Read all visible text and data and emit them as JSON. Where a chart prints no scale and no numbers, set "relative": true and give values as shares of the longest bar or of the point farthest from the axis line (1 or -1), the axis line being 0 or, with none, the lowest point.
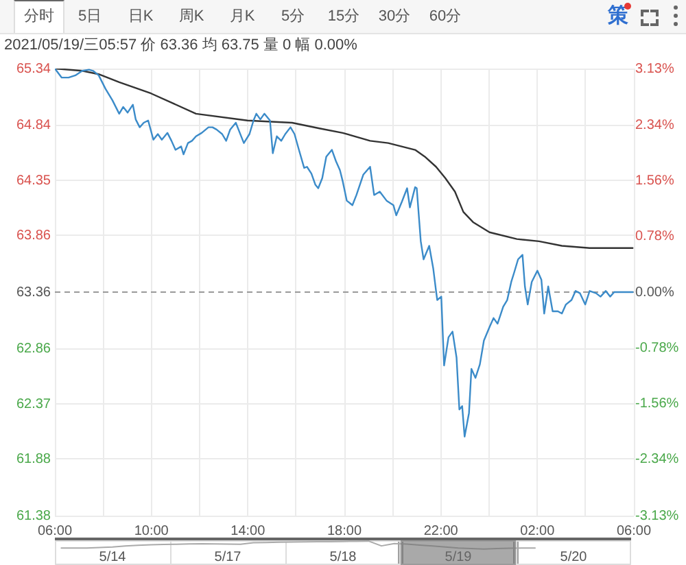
{
  "chart_data": [
    {
      "type": "line",
      "subtitle": "2021/05/19/三05:57 价 63.36 均 63.75 量 0 幅 0.00%",
      "annotations": [
        "分时",
        "5日",
        "日K",
        "周K",
        "月K",
        "5分",
        "15分",
        "30分",
        "60分",
        "策"
      ],
      "xlim": [
        "2021-05-18T06:00",
        "2021-05-19T06:00"
      ],
      "xticks": [
        {
          "value": "2021-05-18T06:00",
          "label": "06:00"
        },
        {
          "value": "2021-05-18T08:00",
          "label": null
        },
        {
          "value": "2021-05-18T10:00",
          "label": "10:00"
        },
        {
          "value": "2021-05-18T12:00",
          "label": null
        },
        {
          "value": "2021-05-18T14:00",
          "label": "14:00"
        },
        {
          "value": "2021-05-18T16:00",
          "label": null
        },
        {
          "value": "2021-05-18T18:00",
          "label": "18:00"
        },
        {
          "value": "2021-05-18T20:00",
          "label": null
        },
        {
          "value": "2021-05-18T22:00",
          "label": "22:00"
        },
        {
          "value": "2021-05-19T00:00",
          "label": null
        },
        {
          "value": "2021-05-19T02:00",
          "label": "02:00"
        },
        {
          "value": "2021-05-19T04:00",
          "label": null
        },
        {
          "value": "2021-05-19T06:00",
          "label": "06:00"
        }
      ],
      "ylim": [
        61.38,
        65.34
      ],
      "yticks": [
        65.34,
        64.84,
        64.35,
        63.86,
        63.36,
        62.86,
        62.37,
        61.88,
        61.38
      ],
      "y2lim": [
        -3.13,
        3.13
      ],
      "y2ticks": [
        {
          "value": 3.13,
          "label": "3.13%"
        },
        {
          "value": 2.34,
          "label": "2.34%"
        },
        {
          "value": 1.56,
          "label": "1.56%"
        },
        {
          "value": 0.78,
          "label": "0.78%"
        },
        {
          "value": 0,
          "label": "0.00%"
        },
        {
          "value": -0.78,
          "label": "-0.78%"
        },
        {
          "value": -1.56,
          "label": "-1.56%"
        },
        {
          "value": -2.34,
          "label": "-2.34%"
        },
        {
          "value": -3.13,
          "label": "-3.13%"
        }
      ],
      "series": [
        {
          "color": "#3b8bc9",
          "x": [
            "2021-05-18T06:00",
            "2021-05-18T06:17",
            "2021-05-18T06:34",
            "2021-05-18T06:51",
            "2021-05-18T07:08",
            "2021-05-18T07:25",
            "2021-05-18T07:35",
            "2021-05-18T07:49",
            "2021-05-18T08:06",
            "2021-05-18T08:23",
            "2021-05-18T08:40",
            "2021-05-18T08:50",
            "2021-05-18T09:01",
            "2021-05-18T09:14",
            "2021-05-18T09:21",
            "2021-05-18T09:31",
            "2021-05-18T09:41",
            "2021-05-18T09:52",
            "2021-05-18T10:05",
            "2021-05-18T10:16",
            "2021-05-18T10:26",
            "2021-05-18T10:40",
            "2021-05-18T10:50",
            "2021-05-18T11:00",
            "2021-05-18T11:14",
            "2021-05-18T11:20",
            "2021-05-18T11:31",
            "2021-05-18T11:41",
            "2021-05-18T11:51",
            "2021-05-18T12:05",
            "2021-05-18T12:22",
            "2021-05-18T12:32",
            "2021-05-18T12:42",
            "2021-05-18T12:56",
            "2021-05-18T13:06",
            "2021-05-18T13:16",
            "2021-05-18T13:30",
            "2021-05-18T13:40",
            "2021-05-18T13:50",
            "2021-05-18T14:04",
            "2021-05-18T14:14",
            "2021-05-18T14:21",
            "2021-05-18T14:31",
            "2021-05-18T14:41",
            "2021-05-18T14:55",
            "2021-05-18T15:02",
            "2021-05-18T15:12",
            "2021-05-18T15:23",
            "2021-05-18T15:33",
            "2021-05-18T15:46",
            "2021-05-18T15:56",
            "2021-05-18T16:07",
            "2021-05-18T16:20",
            "2021-05-18T16:27",
            "2021-05-18T16:38",
            "2021-05-18T16:48",
            "2021-05-18T16:55",
            "2021-05-18T17:05",
            "2021-05-18T17:15",
            "2021-05-18T17:29",
            "2021-05-18T17:39",
            "2021-05-18T17:49",
            "2021-05-18T17:56",
            "2021-05-18T18:06",
            "2021-05-18T18:20",
            "2021-05-18T18:30",
            "2021-05-18T18:47",
            "2021-05-18T19:04",
            "2021-05-18T19:14",
            "2021-05-18T19:28",
            "2021-05-18T19:45",
            "2021-05-18T20:02",
            "2021-05-18T20:09",
            "2021-05-18T20:23",
            "2021-05-18T20:36",
            "2021-05-18T20:43",
            "2021-05-18T20:56",
            "2021-05-18T21:00",
            "2021-05-18T21:10",
            "2021-05-18T21:17",
            "2021-05-18T21:31",
            "2021-05-18T21:41",
            "2021-05-18T21:48",
            "2021-05-18T21:51",
            "2021-05-18T22:01",
            "2021-05-18T22:08",
            "2021-05-18T22:19",
            "2021-05-18T22:29",
            "2021-05-18T22:39",
            "2021-05-18T22:46",
            "2021-05-18T22:53",
            "2021-05-18T22:59",
            "2021-05-18T23:10",
            "2021-05-18T23:16",
            "2021-05-18T23:26",
            "2021-05-18T23:37",
            "2021-05-18T23:47",
            "2021-05-19T00:01",
            "2021-05-19T00:11",
            "2021-05-19T00:21",
            "2021-05-19T00:35",
            "2021-05-19T00:45",
            "2021-05-19T00:55",
            "2021-05-19T01:02",
            "2021-05-19T01:12",
            "2021-05-19T01:23",
            "2021-05-19T01:29",
            "2021-05-19T01:36",
            "2021-05-19T01:46",
            "2021-05-19T02:00",
            "2021-05-19T02:10",
            "2021-05-19T02:17",
            "2021-05-19T02:27",
            "2021-05-19T02:38",
            "2021-05-19T02:51",
            "2021-05-19T03:01",
            "2021-05-19T03:11",
            "2021-05-19T03:25",
            "2021-05-19T03:35",
            "2021-05-19T03:46",
            "2021-05-19T03:59",
            "2021-05-19T04:10",
            "2021-05-19T04:26",
            "2021-05-19T04:37",
            "2021-05-19T04:50",
            "2021-05-19T05:01",
            "2021-05-19T05:11",
            "2021-05-19T05:57"
          ],
          "values": [
            65.34,
            65.26,
            65.26,
            65.28,
            65.32,
            65.33,
            65.32,
            65.28,
            65.16,
            65.06,
            64.94,
            65.0,
            64.95,
            65.02,
            64.89,
            64.82,
            64.86,
            64.88,
            64.71,
            64.76,
            64.71,
            64.77,
            64.7,
            64.62,
            64.65,
            64.58,
            64.68,
            64.7,
            64.74,
            64.77,
            64.82,
            64.82,
            64.8,
            64.76,
            64.7,
            64.8,
            64.86,
            64.77,
            64.68,
            64.76,
            64.88,
            64.94,
            64.89,
            64.94,
            64.88,
            64.59,
            64.74,
            64.7,
            64.76,
            64.82,
            64.76,
            64.62,
            64.46,
            64.47,
            64.41,
            64.31,
            64.28,
            64.37,
            64.56,
            64.62,
            64.52,
            64.44,
            64.34,
            64.17,
            64.13,
            64.22,
            64.4,
            64.47,
            64.22,
            64.25,
            64.17,
            64.13,
            64.04,
            64.16,
            64.28,
            64.11,
            64.29,
            64.28,
            63.81,
            63.65,
            63.77,
            63.57,
            63.37,
            63.29,
            63.32,
            62.71,
            62.96,
            63.01,
            62.78,
            62.32,
            62.35,
            62.08,
            62.29,
            62.68,
            62.6,
            62.72,
            62.93,
            63.05,
            63.13,
            63.08,
            63.23,
            63.29,
            63.45,
            63.53,
            63.65,
            63.69,
            63.41,
            63.25,
            63.45,
            63.55,
            63.47,
            63.17,
            63.41,
            63.19,
            63.19,
            63.17,
            63.25,
            63.29,
            63.37,
            63.35,
            63.25,
            63.37,
            63.35,
            63.32,
            63.37,
            63.32,
            63.36,
            63.36
          ]
        },
        {
          "color": "#333333",
          "x": [
            "2021-05-18T06:00",
            "2021-05-18T07:08",
            "2021-05-18T07:49",
            "2021-05-18T08:40",
            "2021-05-18T09:59",
            "2021-05-18T11:51",
            "2021-05-18T13:59",
            "2021-05-18T15:50",
            "2021-05-18T16:58",
            "2021-05-18T17:56",
            "2021-05-18T19:04",
            "2021-05-18T19:49",
            "2021-05-18T20:56",
            "2021-05-18T21:20",
            "2021-05-18T21:48",
            "2021-05-18T22:11",
            "2021-05-18T22:35",
            "2021-05-18T22:56",
            "2021-05-18T23:20",
            "2021-05-19T00:01",
            "2021-05-19T01:09",
            "2021-05-19T02:04",
            "2021-05-19T03:01",
            "2021-05-19T04:10",
            "2021-05-19T05:57"
          ],
          "values": [
            65.34,
            65.32,
            65.29,
            65.22,
            65.12,
            64.94,
            64.88,
            64.86,
            64.81,
            64.77,
            64.7,
            64.68,
            64.62,
            64.56,
            64.47,
            64.37,
            64.25,
            64.07,
            63.98,
            63.89,
            63.83,
            63.81,
            63.77,
            63.75,
            63.75
          ]
        }
      ],
      "ref_lines": [
        {
          "axis": "y",
          "value": 63.36,
          "color": "#999999",
          "line_style": "dashed"
        }
      ],
      "grid": true,
      "marker": "none",
      "line_style": "solid"
    },
    {
      "type": "line",
      "relative": true,
      "categories": [
        null,
        null,
        null,
        null,
        "5/14",
        null,
        null,
        null,
        null,
        null,
        null,
        null,
        null,
        "5/17",
        null,
        null,
        null,
        null,
        null,
        null,
        null,
        null,
        "5/18",
        null,
        null,
        null,
        null,
        null,
        null,
        null,
        null,
        "5/19",
        null,
        null,
        null,
        null,
        null,
        null,
        null,
        null,
        "5/20",
        null,
        null,
        null,
        null
      ],
      "values": [
        0.13,
        0.13,
        0.13,
        0.2,
        0.27,
        0.38,
        0.48,
        0.53,
        0.58,
        0.61,
        0.64,
        0.67,
        0.65,
        0.62,
        0.6,
        0.8,
        0.83,
        0.86,
        0.88,
        0.9,
        0.92,
        0.93,
        0.95,
        0.98,
        1.0,
        0.4,
        0.7,
        0.62,
        0.5,
        0.38,
        0.26,
        0.13,
        0.06,
        0.0,
        0.06,
        0.11,
        0.13,
        0.13,
        null,
        null,
        null,
        null,
        null,
        null,
        null
      ],
      "color": "#aaaaaa",
      "grid": "x",
      "tick_labels": "x"
    }
  ]
}
